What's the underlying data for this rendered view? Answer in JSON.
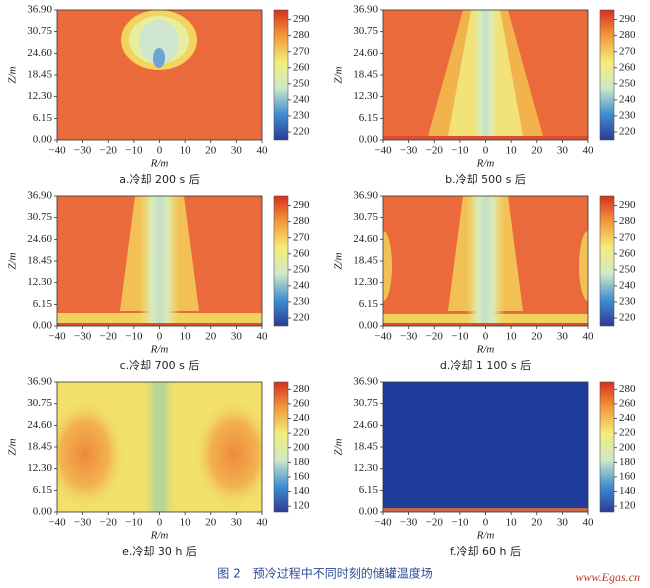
{
  "figure_caption": "图 2　预冷过程中不同时刻的储罐温度场",
  "watermark": "www.Egas.cn",
  "colormap": [
    "#2b3a97",
    "#3f8fd0",
    "#cfe9c8",
    "#f3ee7a",
    "#f39a3b",
    "#d7301f"
  ],
  "chart_data": [
    {
      "type": "heatmap",
      "caption": "a.冷却 200 s 后",
      "xlabel": "R/m",
      "ylabel": "Z/m",
      "xlim": [
        -40,
        40
      ],
      "ylim": [
        0,
        36.9
      ],
      "xticks": [
        {
          "value": -40,
          "label": "−40"
        },
        {
          "value": -30,
          "label": "−30"
        },
        {
          "value": -20,
          "label": "−20"
        },
        {
          "value": -10,
          "label": "−10"
        },
        0,
        10,
        20,
        30,
        40
      ],
      "yticks": [
        {
          "value": 0,
          "label": "0.00"
        },
        {
          "value": 6.15,
          "label": "6.15"
        },
        {
          "value": 12.3,
          "label": "12.30"
        },
        {
          "value": 18.45,
          "label": "18.45"
        },
        {
          "value": 24.6,
          "label": "24.60"
        },
        {
          "value": 30.75,
          "label": "30.75"
        },
        {
          "value": 36.9,
          "label": "36.90"
        }
      ],
      "clim": [
        215,
        296
      ],
      "cticks": [
        220,
        230,
        240,
        250,
        260,
        270,
        280,
        290
      ]
    },
    {
      "type": "heatmap",
      "caption": "b.冷却 500 s 后",
      "xlabel": "R/m",
      "ylabel": "Z/m",
      "xlim": [
        -40,
        40
      ],
      "ylim": [
        0,
        36.9
      ],
      "xticks": [
        {
          "value": -40,
          "label": "−40"
        },
        {
          "value": -30,
          "label": "−30"
        },
        {
          "value": -20,
          "label": "−20"
        },
        {
          "value": -10,
          "label": "−10"
        },
        0,
        10,
        20,
        30,
        40
      ],
      "yticks": [
        {
          "value": 0,
          "label": "0.00"
        },
        {
          "value": 6.15,
          "label": "6.15"
        },
        {
          "value": 12.3,
          "label": "12.30"
        },
        {
          "value": 18.45,
          "label": "18.45"
        },
        {
          "value": 24.6,
          "label": "24.60"
        },
        {
          "value": 30.75,
          "label": "30.75"
        },
        {
          "value": 36.9,
          "label": "36.90"
        }
      ],
      "clim": [
        215,
        296
      ],
      "cticks": [
        220,
        230,
        240,
        250,
        260,
        270,
        280,
        290
      ]
    },
    {
      "type": "heatmap",
      "caption": "c.冷却 700 s 后",
      "xlabel": "R/m",
      "ylabel": "Z/m",
      "xlim": [
        -40,
        40
      ],
      "ylim": [
        0,
        36.9
      ],
      "xticks": [
        {
          "value": -40,
          "label": "−40"
        },
        {
          "value": -30,
          "label": "−30"
        },
        {
          "value": -20,
          "label": "−20"
        },
        {
          "value": -10,
          "label": "−10"
        },
        0,
        10,
        20,
        30,
        40
      ],
      "yticks": [
        {
          "value": 0,
          "label": "0.00"
        },
        {
          "value": 6.15,
          "label": "6.15"
        },
        {
          "value": 12.3,
          "label": "12.30"
        },
        {
          "value": 18.45,
          "label": "18.45"
        },
        {
          "value": 24.6,
          "label": "24.60"
        },
        {
          "value": 30.75,
          "label": "30.75"
        },
        {
          "value": 36.9,
          "label": "36.90"
        }
      ],
      "clim": [
        215,
        296
      ],
      "cticks": [
        220,
        230,
        240,
        250,
        260,
        270,
        280,
        290
      ]
    },
    {
      "type": "heatmap",
      "caption": "d.冷却 1 100 s 后",
      "xlabel": "R/m",
      "ylabel": "Z/m",
      "xlim": [
        -40,
        40
      ],
      "ylim": [
        0,
        36.9
      ],
      "xticks": [
        {
          "value": -40,
          "label": "−40"
        },
        {
          "value": -30,
          "label": "−30"
        },
        {
          "value": -20,
          "label": "−20"
        },
        {
          "value": -10,
          "label": "−10"
        },
        0,
        10,
        20,
        30,
        40
      ],
      "yticks": [
        {
          "value": 0,
          "label": "0.00"
        },
        {
          "value": 6.15,
          "label": "6.15"
        },
        {
          "value": 12.3,
          "label": "12.30"
        },
        {
          "value": 18.45,
          "label": "18.45"
        },
        {
          "value": 24.6,
          "label": "24.60"
        },
        {
          "value": 30.75,
          "label": "30.75"
        },
        {
          "value": 36.9,
          "label": "36.90"
        }
      ],
      "clim": [
        215,
        296
      ],
      "cticks": [
        220,
        230,
        240,
        250,
        260,
        270,
        280,
        290
      ]
    },
    {
      "type": "heatmap",
      "caption": "e.冷却 30 h 后",
      "xlabel": "R/m",
      "ylabel": "Z/m",
      "xlim": [
        -40,
        40
      ],
      "ylim": [
        0,
        36.9
      ],
      "xticks": [
        {
          "value": -40,
          "label": "−40"
        },
        {
          "value": -30,
          "label": "−30"
        },
        {
          "value": -20,
          "label": "−20"
        },
        {
          "value": -10,
          "label": "−10"
        },
        0,
        10,
        20,
        30,
        40
      ],
      "yticks": [
        {
          "value": 0,
          "label": "0.00"
        },
        {
          "value": 6.15,
          "label": "6.15"
        },
        {
          "value": 12.3,
          "label": "12.30"
        },
        {
          "value": 18.45,
          "label": "18.45"
        },
        {
          "value": 24.6,
          "label": "24.60"
        },
        {
          "value": 30.75,
          "label": "30.75"
        },
        {
          "value": 36.9,
          "label": "36.90"
        }
      ],
      "clim": [
        112,
        290
      ],
      "cticks": [
        120,
        140,
        160,
        180,
        200,
        220,
        240,
        260,
        280
      ]
    },
    {
      "type": "heatmap",
      "caption": "f.冷却 60 h 后",
      "xlabel": "R/m",
      "ylabel": "Z/m",
      "xlim": [
        -40,
        40
      ],
      "ylim": [
        0,
        36.9
      ],
      "xticks": [
        {
          "value": -40,
          "label": "−40"
        },
        {
          "value": -30,
          "label": "−30"
        },
        {
          "value": -20,
          "label": "−20"
        },
        {
          "value": -10,
          "label": "−10"
        },
        0,
        10,
        20,
        30,
        40
      ],
      "yticks": [
        {
          "value": 0,
          "label": "0.00"
        },
        {
          "value": 6.15,
          "label": "6.15"
        },
        {
          "value": 12.3,
          "label": "12.30"
        },
        {
          "value": 18.45,
          "label": "18.45"
        },
        {
          "value": 24.6,
          "label": "24.60"
        },
        {
          "value": 30.75,
          "label": "30.75"
        },
        {
          "value": 36.9,
          "label": "36.90"
        }
      ],
      "clim": [
        112,
        290
      ],
      "cticks": [
        120,
        140,
        160,
        180,
        200,
        220,
        240,
        260,
        280
      ]
    }
  ]
}
